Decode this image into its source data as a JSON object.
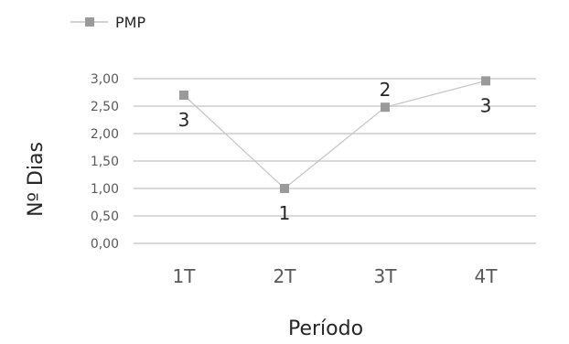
{
  "chart_data": {
    "type": "line",
    "title": "",
    "xlabel": "Período",
    "ylabel": "Nº Dias",
    "categories": [
      "1T",
      "2T",
      "3T",
      "4T"
    ],
    "ylim": [
      0,
      3
    ],
    "yticks": [
      "0,00",
      "0,50",
      "1,00",
      "1,50",
      "2,00",
      "2,50",
      "3,00"
    ],
    "grid": true,
    "legend_position": "top-left",
    "series": [
      {
        "name": "PMP",
        "values": [
          2.7,
          1.0,
          2.48,
          2.96
        ],
        "data_labels": [
          "3",
          "1",
          "2",
          "3"
        ],
        "color": "#9a9a9a",
        "line_color": "#c4c4c4",
        "marker": "square"
      }
    ],
    "gridline_color": "#d9d9d9"
  }
}
